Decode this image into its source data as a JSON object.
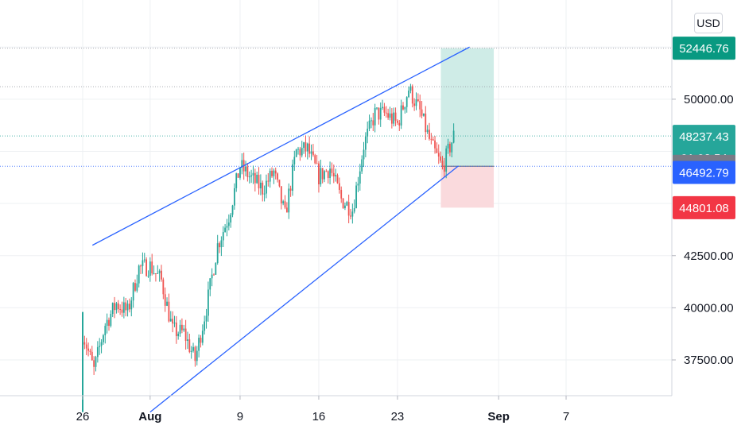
{
  "currency_button": "USD",
  "colors": {
    "up": "#26a69a",
    "down": "#ef5350",
    "channel": "#2962ff",
    "grid": "#eef0f3",
    "profit_zone": "#cfece7",
    "loss_zone": "#fadadd"
  },
  "chart_data": {
    "type": "candlestick",
    "x_ticks": [
      "26",
      "Aug",
      "9",
      "16",
      "23",
      "Sep",
      "7"
    ],
    "y_ticks": [
      "37500.00",
      "40000.00",
      "42500.00",
      "50000.00"
    ],
    "ylim": [
      35000,
      54000
    ],
    "x_range_days": [
      "2021-07-22",
      "2021-09-09"
    ],
    "price_tags": [
      {
        "label": "52446.76",
        "value": 52446.76,
        "color": "#089981",
        "kind": "target"
      },
      {
        "label": "48237.43",
        "sub": "01:02:54",
        "value": 48237.43,
        "color": "#26a69a",
        "kind": "last-price"
      },
      {
        "label": "46785.15",
        "value": 46785.15,
        "color": "#787b86",
        "kind": "entry"
      },
      {
        "label": "46492.79",
        "value": 46492.79,
        "color": "#2962ff",
        "kind": "channel"
      },
      {
        "label": "44801.08",
        "value": 44801.08,
        "color": "#f23645",
        "kind": "stop"
      }
    ],
    "dotted_levels": [
      52446.76,
      50600,
      48237.43,
      46785.15
    ],
    "channel": {
      "upper": [
        [
          "2021-07-28",
          43000
        ],
        [
          "2021-08-28",
          52500
        ]
      ],
      "lower": [
        [
          "2021-08-01",
          35000
        ],
        [
          "2021-08-27",
          46800
        ]
      ]
    },
    "position": {
      "start": "2021-08-27",
      "end": "2021-08-31",
      "entry": 46785.15,
      "target": 52446.76,
      "stop": 44801.08
    },
    "close_path": [
      [
        "2021-07-26",
        38800
      ],
      [
        "2021-07-27",
        37000
      ],
      [
        "2021-07-28",
        39200
      ],
      [
        "2021-07-29",
        40200
      ],
      [
        "2021-07-30",
        39800
      ],
      [
        "2021-07-31",
        41900
      ],
      [
        "2021-08-01",
        42000
      ],
      [
        "2021-08-02",
        41300
      ],
      [
        "2021-08-03",
        38900
      ],
      [
        "2021-08-04",
        38800
      ],
      [
        "2021-08-05",
        37500
      ],
      [
        "2021-08-06",
        40000
      ],
      [
        "2021-08-07",
        43000
      ],
      [
        "2021-08-08",
        44400
      ],
      [
        "2021-08-09",
        46800
      ],
      [
        "2021-08-10",
        46200
      ],
      [
        "2021-08-11",
        45700
      ],
      [
        "2021-08-12",
        46500
      ],
      [
        "2021-08-13",
        44400
      ],
      [
        "2021-08-14",
        47500
      ],
      [
        "2021-08-15",
        47600
      ],
      [
        "2021-08-16",
        46300
      ],
      [
        "2021-08-17",
        46700
      ],
      [
        "2021-08-18",
        45200
      ],
      [
        "2021-08-19",
        44700
      ],
      [
        "2021-08-20",
        47800
      ],
      [
        "2021-08-21",
        49300
      ],
      [
        "2021-08-22",
        49300
      ],
      [
        "2021-08-23",
        48800
      ],
      [
        "2021-08-24",
        50500
      ],
      [
        "2021-08-25",
        49400
      ],
      [
        "2021-08-26",
        47800
      ],
      [
        "2021-08-27",
        46700
      ],
      [
        "2021-08-28",
        48237
      ]
    ]
  }
}
